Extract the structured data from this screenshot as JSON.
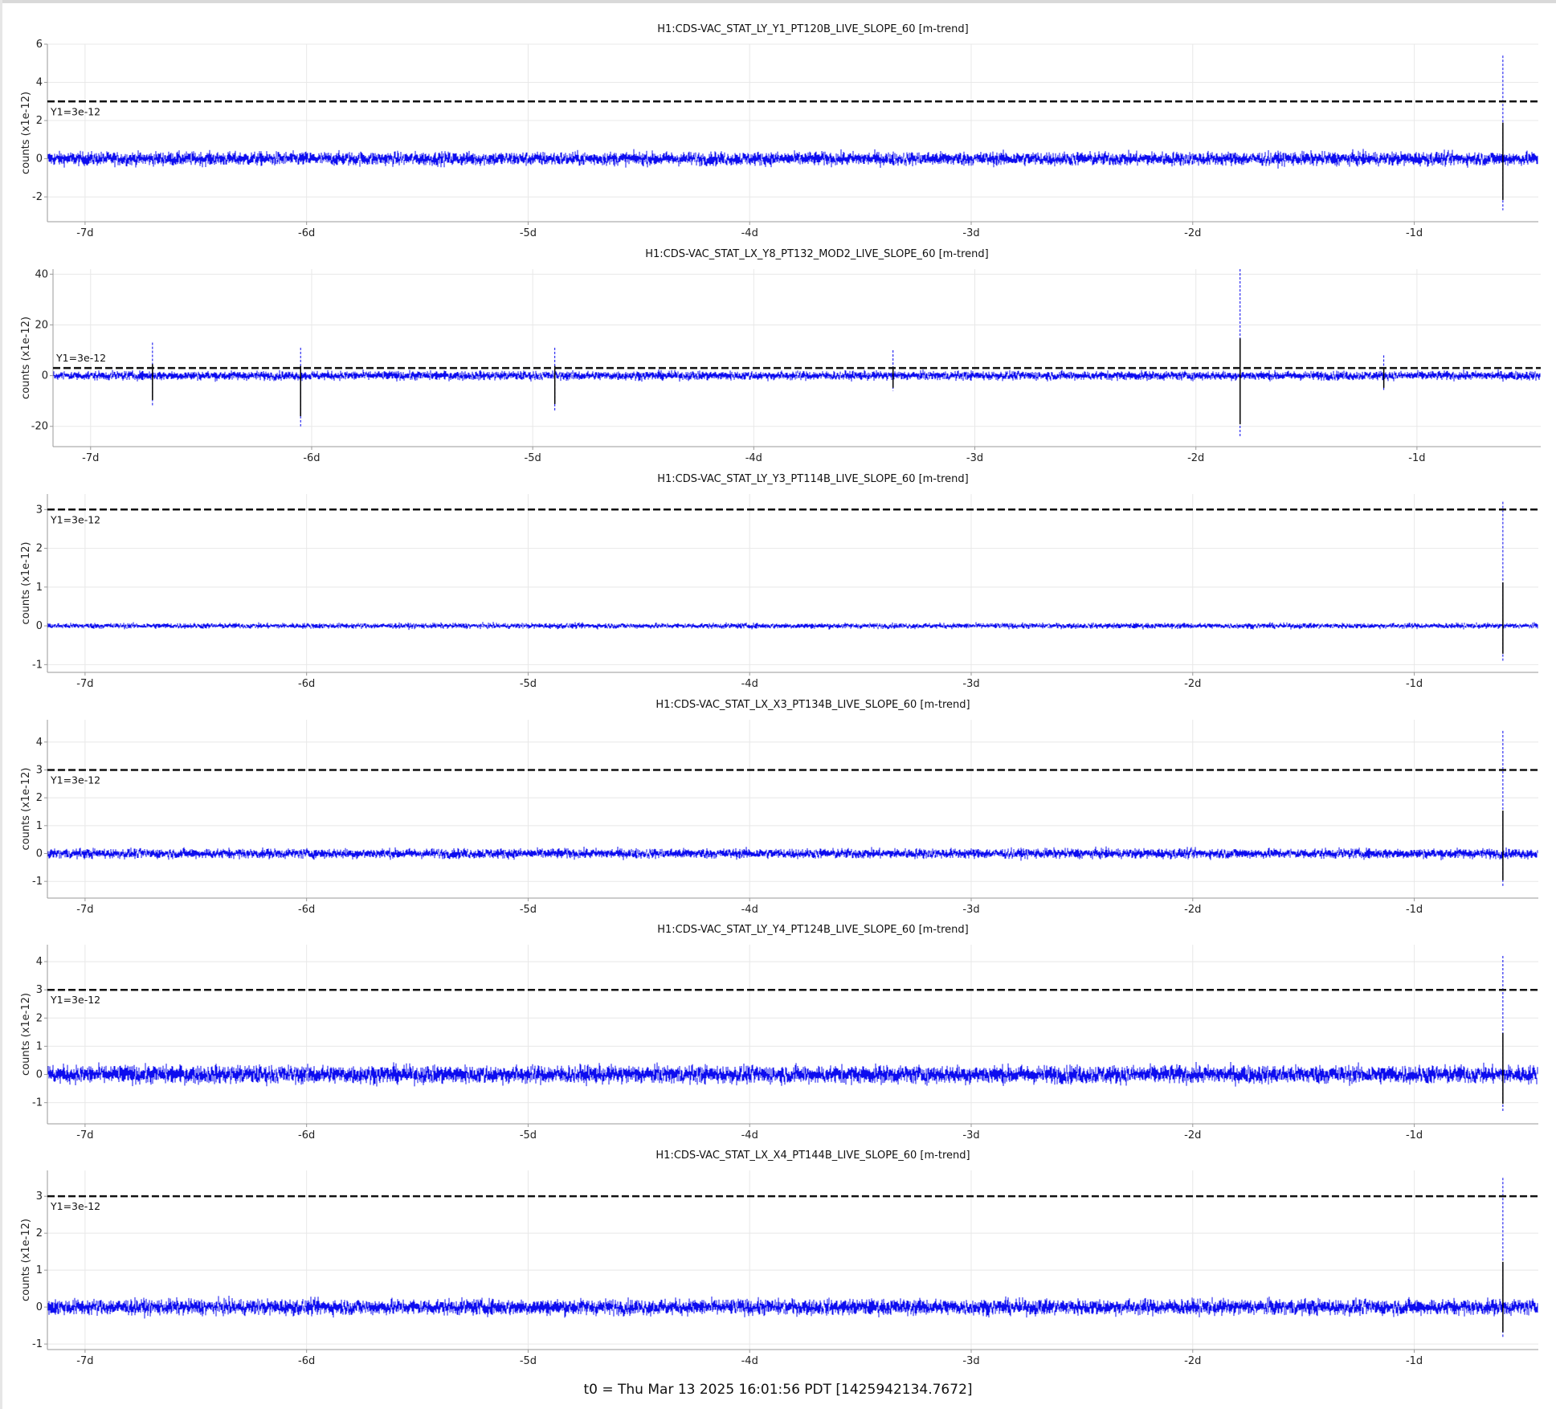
{
  "footer": "t0 = Thu Mar 13 2025 16:01:56 PDT [1425942134.7672]",
  "colors": {
    "trace": "#0000ee",
    "spike": "#000000",
    "threshold": "#111111",
    "grid": "#e8e8e8",
    "axis": "#9a9a9a"
  },
  "chart_data": [
    {
      "type": "line",
      "title": "H1:CDS-VAC_STAT_LY_Y1_PT120B_LIVE_SLOPE_60 [m-trend]",
      "ylabel": "counts (x1e-12)",
      "xticks": [
        "-7d",
        "-6d",
        "-5d",
        "-4d",
        "-3d",
        "-2d",
        "-1d"
      ],
      "xtick_days": [
        -7,
        -6,
        -5,
        -4,
        -3,
        -2,
        -1
      ],
      "xlim_days": [
        -7.17,
        -0.44
      ],
      "yticks": [
        -2,
        0,
        2,
        4,
        6
      ],
      "ylim": [
        -3.3,
        6
      ],
      "threshold": {
        "label": "Y1=3e-12",
        "value": 3
      },
      "series": [
        {
          "noise_band": [
            -0.5,
            0.5
          ],
          "mean": 0
        }
      ],
      "spikes": [
        {
          "t": -0.6,
          "min": -2.7,
          "max": 5.4
        }
      ],
      "grid": true
    },
    {
      "type": "line",
      "title": "H1:CDS-VAC_STAT_LX_Y8_PT132_MOD2_LIVE_SLOPE_60 [m-trend]",
      "ylabel": "counts (x1e-12)",
      "xticks": [
        "-7d",
        "-6d",
        "-5d",
        "-4d",
        "-3d",
        "-2d",
        "-1d"
      ],
      "xtick_days": [
        -7,
        -6,
        -5,
        -4,
        -3,
        -2,
        -1
      ],
      "xlim_days": [
        -7.17,
        -0.44
      ],
      "yticks": [
        -20,
        0,
        20,
        40
      ],
      "ylim": [
        -28,
        42
      ],
      "threshold": {
        "label": "Y1=3e-12",
        "value": 3
      },
      "series": [
        {
          "noise_band": [
            -2.5,
            2.5
          ],
          "mean": 0
        }
      ],
      "spikes": [
        {
          "t": -6.72,
          "min": -12,
          "max": 13
        },
        {
          "t": -6.05,
          "min": -20,
          "max": 11
        },
        {
          "t": -4.9,
          "min": -14,
          "max": 11
        },
        {
          "t": -3.37,
          "min": -6,
          "max": 10
        },
        {
          "t": -1.8,
          "min": -24,
          "max": 42
        },
        {
          "t": -1.15,
          "min": -6,
          "max": 8
        }
      ],
      "grid": true
    },
    {
      "type": "line",
      "title": "H1:CDS-VAC_STAT_LY_Y3_PT114B_LIVE_SLOPE_60 [m-trend]",
      "ylabel": "counts (x1e-12)",
      "xticks": [
        "-7d",
        "-6d",
        "-5d",
        "-4d",
        "-3d",
        "-2d",
        "-1d"
      ],
      "xtick_days": [
        -7,
        -6,
        -5,
        -4,
        -3,
        -2,
        -1
      ],
      "xlim_days": [
        -7.17,
        -0.44
      ],
      "yticks": [
        -1,
        0,
        1,
        2,
        3
      ],
      "ylim": [
        -1.2,
        3.4
      ],
      "threshold": {
        "label": "Y1=3e-12",
        "value": 3
      },
      "series": [
        {
          "noise_band": [
            -0.1,
            0.1
          ],
          "mean": 0
        }
      ],
      "spikes": [
        {
          "t": -0.6,
          "min": -0.9,
          "max": 3.2
        }
      ],
      "grid": true
    },
    {
      "type": "line",
      "title": "H1:CDS-VAC_STAT_LX_X3_PT134B_LIVE_SLOPE_60 [m-trend]",
      "ylabel": "counts (x1e-12)",
      "xticks": [
        "-7d",
        "-6d",
        "-5d",
        "-4d",
        "-3d",
        "-2d",
        "-1d"
      ],
      "xtick_days": [
        -7,
        -6,
        -5,
        -4,
        -3,
        -2,
        -1
      ],
      "xlim_days": [
        -7.17,
        -0.44
      ],
      "yticks": [
        -1,
        0,
        1,
        2,
        3,
        4
      ],
      "ylim": [
        -1.6,
        4.8
      ],
      "threshold": {
        "label": "Y1=3e-12",
        "value": 3
      },
      "series": [
        {
          "noise_band": [
            -0.25,
            0.25
          ],
          "mean": 0
        }
      ],
      "spikes": [
        {
          "t": -0.6,
          "min": -1.2,
          "max": 4.4
        }
      ],
      "grid": true
    },
    {
      "type": "line",
      "title": "H1:CDS-VAC_STAT_LY_Y4_PT124B_LIVE_SLOPE_60 [m-trend]",
      "ylabel": "counts (x1e-12)",
      "xticks": [
        "-7d",
        "-6d",
        "-5d",
        "-4d",
        "-3d",
        "-2d",
        "-1d"
      ],
      "xtick_days": [
        -7,
        -6,
        -5,
        -4,
        -3,
        -2,
        -1
      ],
      "xlim_days": [
        -7.17,
        -0.44
      ],
      "yticks": [
        -1,
        0,
        1,
        2,
        3,
        4
      ],
      "ylim": [
        -1.75,
        4.6
      ],
      "threshold": {
        "label": "Y1=3e-12",
        "value": 3
      },
      "series": [
        {
          "noise_band": [
            -0.45,
            0.45
          ],
          "mean": 0
        }
      ],
      "spikes": [
        {
          "t": -0.6,
          "min": -1.3,
          "max": 4.2
        }
      ],
      "grid": true
    },
    {
      "type": "line",
      "title": "H1:CDS-VAC_STAT_LX_X4_PT144B_LIVE_SLOPE_60 [m-trend]",
      "ylabel": "counts (x1e-12)",
      "xticks": [
        "-7d",
        "-6d",
        "-5d",
        "-4d",
        "-3d",
        "-2d",
        "-1d"
      ],
      "xtick_days": [
        -7,
        -6,
        -5,
        -4,
        -3,
        -2,
        -1
      ],
      "xlim_days": [
        -7.17,
        -0.44
      ],
      "yticks": [
        -1,
        0,
        1,
        2,
        3
      ],
      "ylim": [
        -1.15,
        3.7
      ],
      "threshold": {
        "label": "Y1=3e-12",
        "value": 3
      },
      "series": [
        {
          "noise_band": [
            -0.3,
            0.3
          ],
          "mean": 0
        }
      ],
      "spikes": [
        {
          "t": -0.6,
          "min": -0.85,
          "max": 3.5
        }
      ],
      "grid": true
    }
  ]
}
